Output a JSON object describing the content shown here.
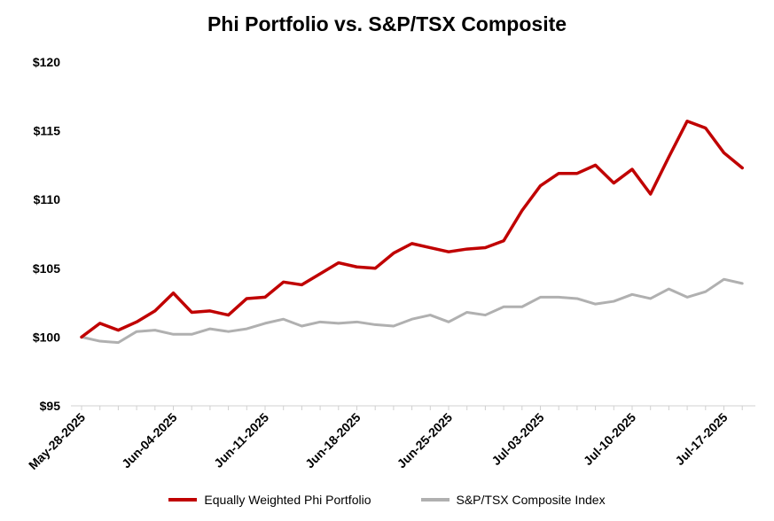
{
  "chart_data": {
    "type": "line",
    "title": "Phi Portfolio vs. S&P/TSX Composite",
    "xlabel": "",
    "ylabel": "",
    "ylim": [
      95,
      120
    ],
    "yticks": [
      "$95",
      "$100",
      "$105",
      "$110",
      "$115",
      "$120"
    ],
    "x": [
      "2025-05-28",
      "2025-05-29",
      "2025-05-30",
      "2025-06-02",
      "2025-06-03",
      "2025-06-04",
      "2025-06-05",
      "2025-06-06",
      "2025-06-09",
      "2025-06-10",
      "2025-06-11",
      "2025-06-12",
      "2025-06-13",
      "2025-06-16",
      "2025-06-17",
      "2025-06-18",
      "2025-06-19",
      "2025-06-20",
      "2025-06-23",
      "2025-06-24",
      "2025-06-25",
      "2025-06-26",
      "2025-06-27",
      "2025-06-30",
      "2025-07-02",
      "2025-07-03",
      "2025-07-04",
      "2025-07-07",
      "2025-07-08",
      "2025-07-09",
      "2025-07-10",
      "2025-07-11",
      "2025-07-14",
      "2025-07-15",
      "2025-07-16",
      "2025-07-17",
      "2025-07-18",
      "2025-07-21"
    ],
    "xticks": [
      "May-28-2025",
      "Jun-04-2025",
      "Jun-11-2025",
      "Jun-18-2025",
      "Jun-25-2025",
      "Jul-03-2025",
      "Jul-10-2025",
      "Jul-17-2025"
    ],
    "series": [
      {
        "name": "Equally Weighted Phi Portfolio",
        "color": "#c00000",
        "values": [
          100.0,
          101.0,
          100.5,
          101.1,
          101.9,
          103.2,
          101.8,
          101.9,
          101.6,
          102.8,
          102.9,
          104.0,
          103.8,
          104.6,
          105.4,
          105.1,
          105.0,
          106.1,
          106.8,
          106.5,
          106.2,
          106.4,
          106.5,
          107.0,
          109.2,
          111.0,
          111.9,
          111.9,
          112.5,
          111.2,
          112.2,
          110.4,
          113.1,
          115.7,
          115.2,
          113.4,
          112.3,
          112.3
        ],
        "drawn_points": 37
      },
      {
        "name": "S&P/TSX Composite Index",
        "color": "#b0b0b0",
        "values": [
          100.0,
          99.7,
          99.6,
          100.4,
          100.5,
          100.2,
          100.2,
          100.6,
          100.4,
          100.6,
          101.0,
          101.3,
          100.8,
          101.1,
          101.0,
          101.1,
          100.9,
          100.8,
          101.3,
          101.6,
          101.1,
          101.8,
          101.6,
          102.2,
          102.2,
          102.9,
          102.9,
          102.8,
          102.4,
          102.6,
          103.1,
          102.8,
          103.5,
          102.9,
          103.3,
          104.2,
          103.9,
          103.9
        ],
        "drawn_points": 37
      }
    ],
    "grid": false,
    "legend_position": "bottom"
  }
}
